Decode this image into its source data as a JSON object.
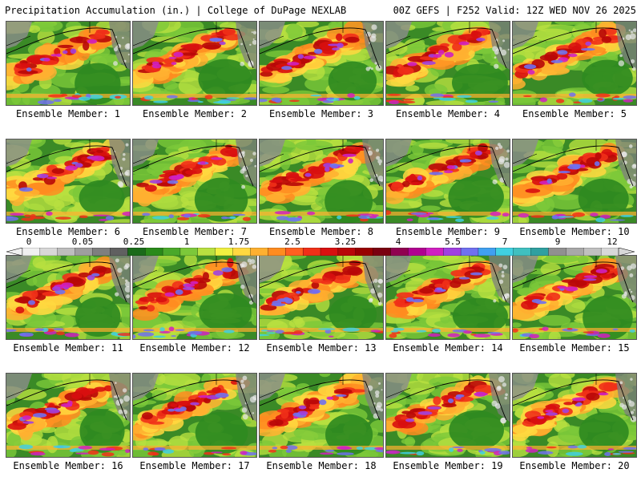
{
  "header": {
    "title_left": "Precipitation Accumulation (in.) | College of DuPage NEXLAB",
    "title_right": "00Z GEFS | F252 Valid: 12Z WED NOV 26 2025"
  },
  "colorbar": {
    "tick_labels": [
      "0",
      "0.05",
      "0.25",
      "1",
      "1.75",
      "2.5",
      "3.25",
      "4",
      "5.5",
      "7",
      "9",
      "12"
    ],
    "colors": [
      "#f0f0f0",
      "#d8d8d8",
      "#bdbdbd",
      "#9e9e9e",
      "#7f7f7f",
      "#606060",
      "#1a6a1a",
      "#2a8a1a",
      "#4aa82a",
      "#7cc83a",
      "#b8e040",
      "#f0f040",
      "#ffd840",
      "#ffb030",
      "#ff8c20",
      "#ff6020",
      "#f03018",
      "#d81010",
      "#b80808",
      "#980000",
      "#7a0010",
      "#900050",
      "#b00090",
      "#d020c0",
      "#a040e0",
      "#7070f0",
      "#40a0f0",
      "#40d0e0",
      "#40c0c0",
      "#30a0a0",
      "#909090",
      "#a8a8a8",
      "#c0c0c0",
      "#d8d8d8"
    ]
  },
  "panels": [
    {
      "label": "Ensemble Member: 1"
    },
    {
      "label": "Ensemble Member: 2"
    },
    {
      "label": "Ensemble Member: 3"
    },
    {
      "label": "Ensemble Member: 4"
    },
    {
      "label": "Ensemble Member: 5"
    },
    {
      "label": "Ensemble Member: 6"
    },
    {
      "label": "Ensemble Member: 7"
    },
    {
      "label": "Ensemble Member: 8"
    },
    {
      "label": "Ensemble Member: 9"
    },
    {
      "label": "Ensemble Member: 10"
    },
    {
      "label": "Ensemble Member: 11"
    },
    {
      "label": "Ensemble Member: 12"
    },
    {
      "label": "Ensemble Member: 13"
    },
    {
      "label": "Ensemble Member: 14"
    },
    {
      "label": "Ensemble Member: 15"
    },
    {
      "label": "Ensemble Member: 16"
    },
    {
      "label": "Ensemble Member: 17"
    },
    {
      "label": "Ensemble Member: 18"
    },
    {
      "label": "Ensemble Member: 19"
    },
    {
      "label": "Ensemble Member: 20"
    }
  ]
}
